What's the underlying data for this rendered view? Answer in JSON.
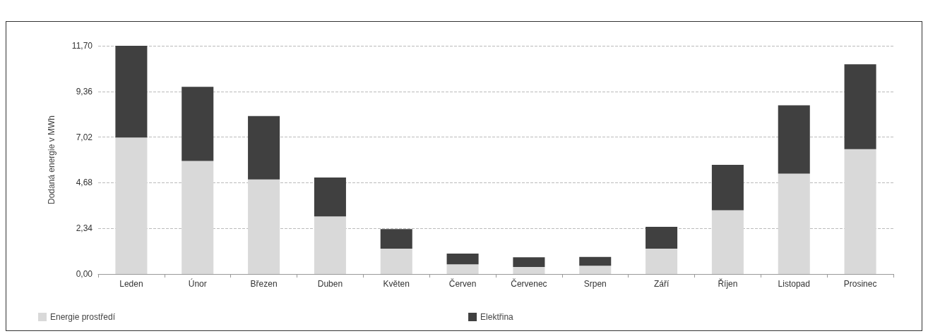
{
  "chart_data": {
    "type": "bar",
    "stacked": true,
    "ylabel": "Dodaná energie v MWh",
    "categories": [
      "Leden",
      "Únor",
      "Březen",
      "Duben",
      "Květen",
      "Červen",
      "Červenec",
      "Srpen",
      "Září",
      "Říjen",
      "Listopad",
      "Prosinec"
    ],
    "series": [
      {
        "name": "Energie prostředí",
        "color": "#d9d9d9",
        "values": [
          7.0,
          5.8,
          4.85,
          2.95,
          1.3,
          0.5,
          0.36,
          0.42,
          1.3,
          3.27,
          5.15,
          6.4
        ]
      },
      {
        "name": "Elektřina",
        "color": "#404040",
        "values": [
          4.7,
          3.8,
          3.25,
          2.0,
          1.0,
          0.55,
          0.5,
          0.46,
          1.12,
          2.33,
          3.5,
          4.35
        ]
      }
    ],
    "ylim": [
      0,
      11.7
    ],
    "yticks": [
      {
        "value": 0,
        "label": "0,00"
      },
      {
        "value": 2.34,
        "label": "2,34"
      },
      {
        "value": 4.68,
        "label": "4,68"
      },
      {
        "value": 7.02,
        "label": "7,02"
      },
      {
        "value": 9.36,
        "label": "9,36"
      },
      {
        "value": 11.7,
        "label": "11,70"
      }
    ],
    "grid": "y",
    "legend": "bottom"
  }
}
